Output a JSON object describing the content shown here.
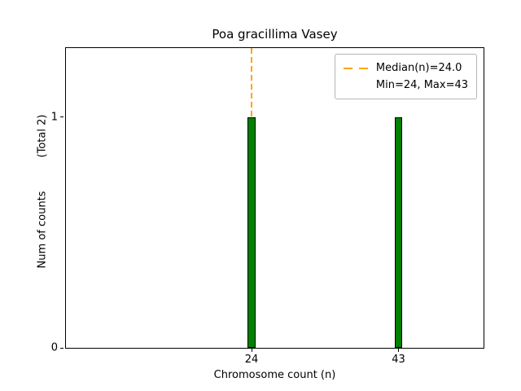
{
  "chart_data": {
    "type": "bar",
    "title": "Poa gracillima Vasey",
    "xlabel": "Chromosome count (n)",
    "ylabel_main": "Num of counts",
    "ylabel_total": "(Total 2)",
    "x": [
      24,
      43
    ],
    "values": [
      1,
      1
    ],
    "bar_width_units": 1.0,
    "bar_color": "#008000",
    "bar_edge_color": "#000000",
    "median": 24.0,
    "min": 24,
    "max": 43,
    "median_line_color": "#FFA500",
    "xlim": [
      0,
      54
    ],
    "ylim": [
      0,
      1.3
    ],
    "xticks": [
      24,
      43
    ],
    "yticks": [
      0,
      1
    ],
    "grid": false,
    "legend": {
      "position": "upper-right",
      "median_label": "Median(n)=24.0",
      "minmax_label": "Min=24, Max=43"
    }
  }
}
